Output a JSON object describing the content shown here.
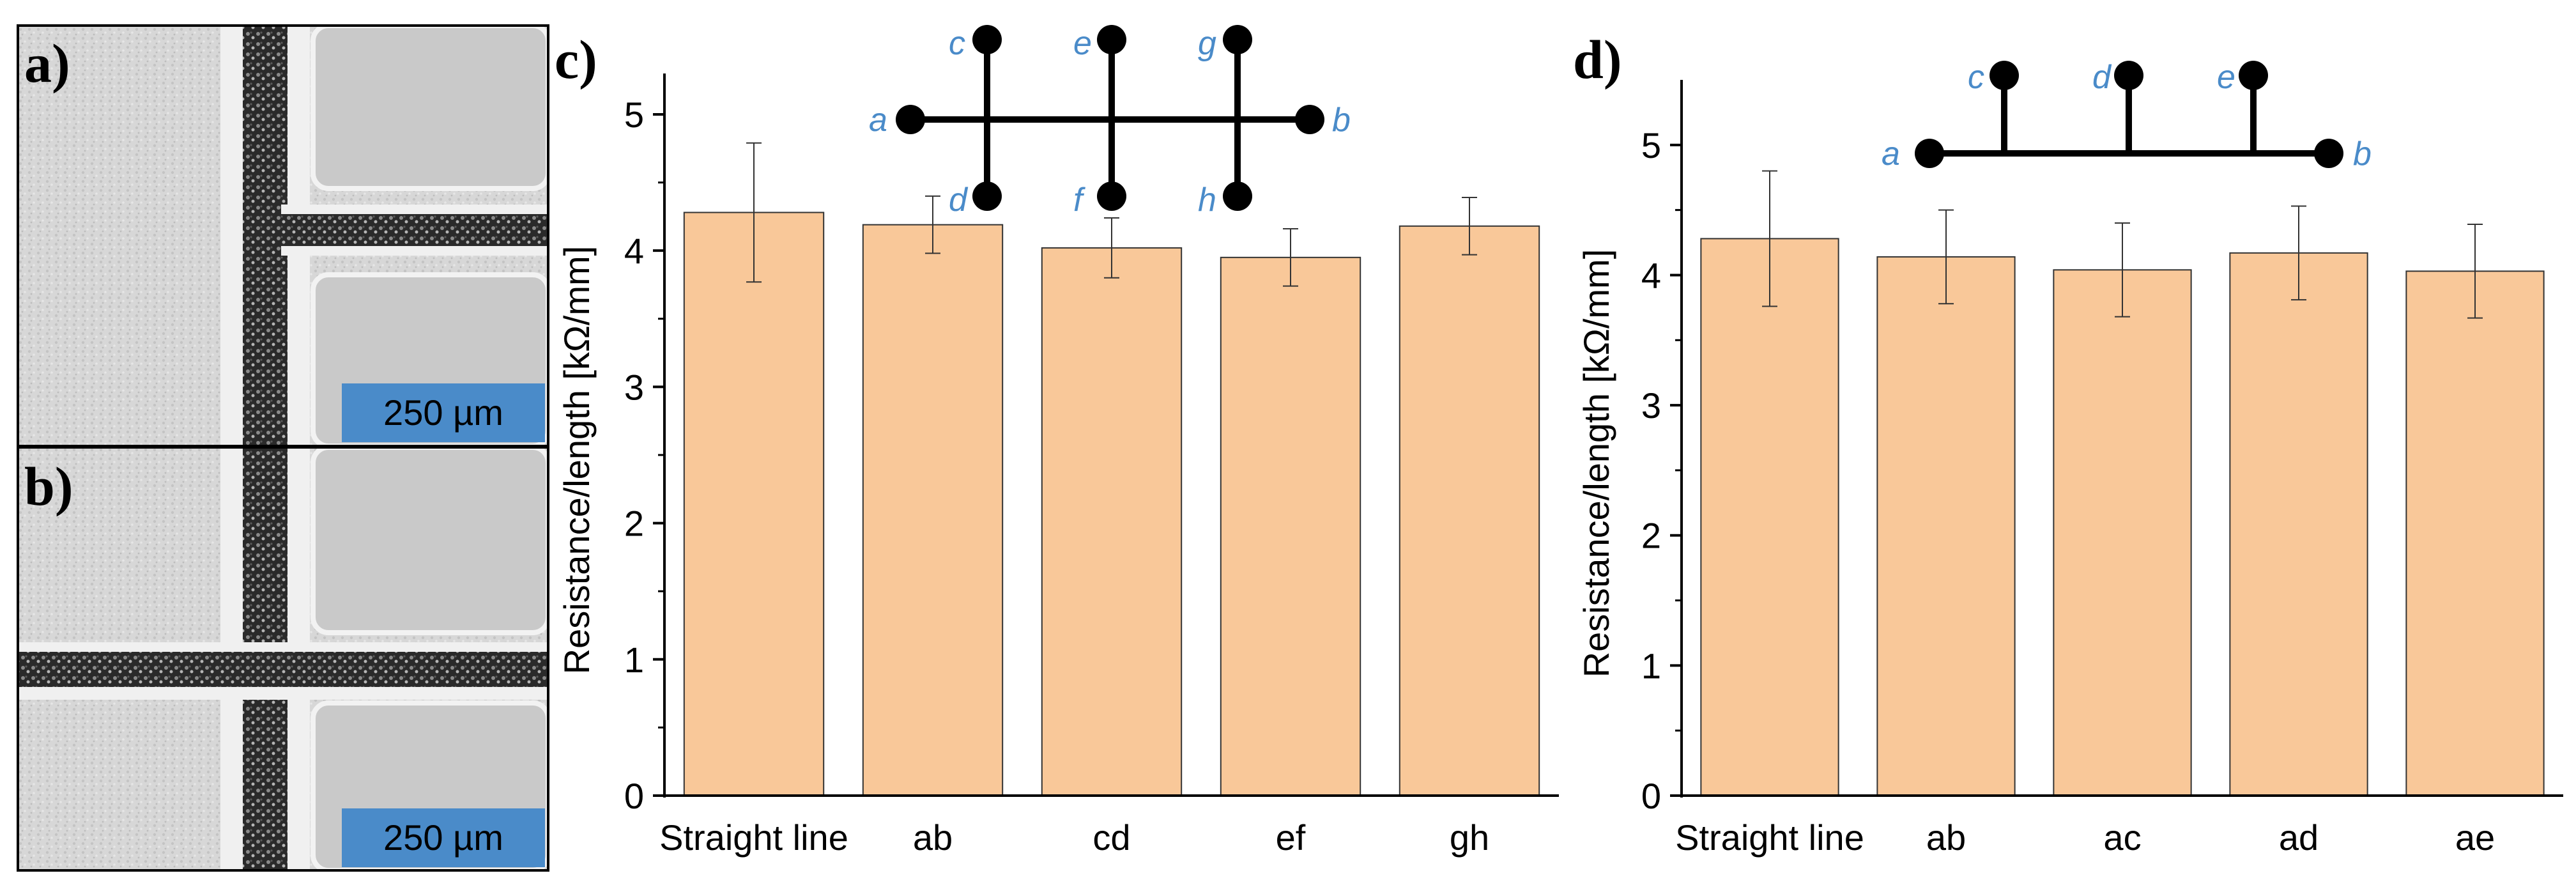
{
  "panels": {
    "a": "a)",
    "b": "b)",
    "c": "c)",
    "d": "d)"
  },
  "micrographs": {
    "a": {
      "scale_bar": "250 µm"
    },
    "b": {
      "scale_bar": "250 µm"
    }
  },
  "colors": {
    "bar_fill": "#f9c899",
    "bar_stroke": "#333333",
    "node_label": "#4a8bc9",
    "scale_bar_bg": "#4a8bc9"
  },
  "schematics": {
    "c": {
      "nodes_top": [
        "c",
        "e",
        "g"
      ],
      "nodes_bottom": [
        "d",
        "f",
        "h"
      ],
      "ends": [
        "a",
        "b"
      ]
    },
    "d": {
      "nodes_top": [
        "c",
        "d",
        "e"
      ],
      "ends": [
        "a",
        "b"
      ]
    }
  },
  "chart_data": [
    {
      "panel": "c",
      "type": "bar",
      "categories": [
        "Straight line",
        "ab",
        "cd",
        "ef",
        "gh"
      ],
      "values": [
        4.28,
        4.19,
        4.02,
        3.95,
        4.18
      ],
      "errors": [
        0.51,
        0.21,
        0.22,
        0.21,
        0.21
      ],
      "title": "",
      "xlabel": "",
      "ylabel": "Resistance/length [kΩ/mm]",
      "ylim": [
        0,
        5.3
      ],
      "yticks": [
        0,
        1,
        2,
        3,
        4,
        5
      ]
    },
    {
      "panel": "d",
      "type": "bar",
      "categories": [
        "Straight line",
        "ab",
        "ac",
        "ad",
        "ae"
      ],
      "values": [
        4.28,
        4.14,
        4.04,
        4.17,
        4.03
      ],
      "errors": [
        0.52,
        0.36,
        0.36,
        0.36,
        0.36
      ],
      "title": "",
      "xlabel": "",
      "ylabel": "Resistance/length [kΩ/mm]",
      "ylim": [
        0,
        5.5
      ],
      "yticks": [
        0,
        1,
        2,
        3,
        4,
        5
      ]
    }
  ]
}
